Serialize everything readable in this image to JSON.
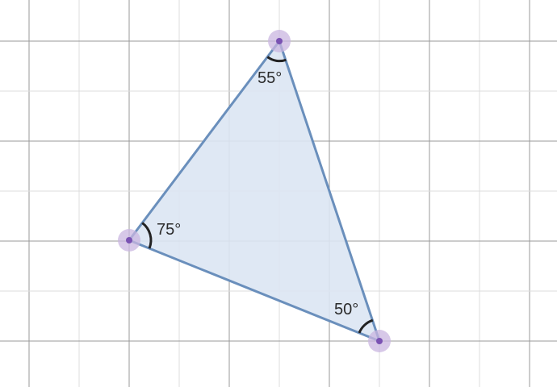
{
  "colors": {
    "grid_major": "#9a9a9a",
    "grid_minor": "#dcdcdc",
    "triangle_fill": "#dbe6f3",
    "triangle_stroke": "#6a8fbc",
    "vertex_halo": "#c9b6e0",
    "vertex_point": "#7a52b3",
    "angle_arc": "#222222"
  },
  "triangle": {
    "vertices": [
      {
        "id": "top",
        "angle_label": "55°"
      },
      {
        "id": "left",
        "angle_label": "75°"
      },
      {
        "id": "bottom-right",
        "angle_label": "50°"
      }
    ]
  }
}
